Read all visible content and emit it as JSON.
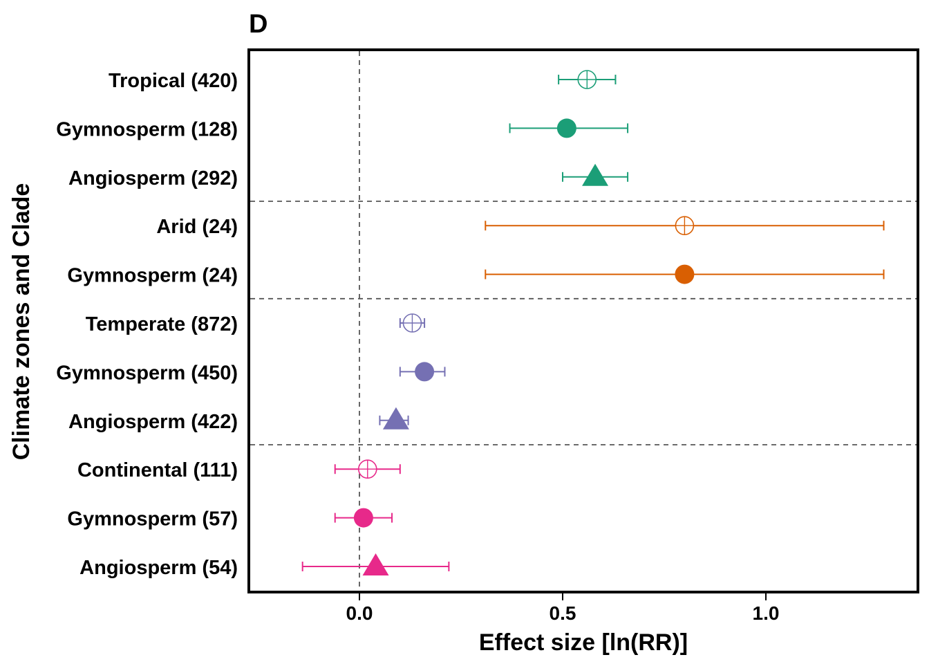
{
  "panel_label": "D",
  "chart_data": {
    "type": "scatter",
    "subtype": "forest-plot",
    "title": "",
    "xlabel": "Effect size [ln(RR)]",
    "ylabel": "Climate zones and Clade",
    "xlim": [
      -0.27,
      1.38
    ],
    "x_ticks": [
      0.0,
      0.5,
      1.0
    ],
    "x_tick_labels": [
      "0.0",
      "0.5",
      "1.0"
    ],
    "reference_line_x": 0,
    "grid": false,
    "legend": "none",
    "groups": [
      {
        "zone": "Tropical",
        "color": "#1b9e77",
        "rows": [
          {
            "label": "Tropical (420)",
            "marker": "open-circle-cross",
            "estimate": 0.56,
            "ci": [
              0.49,
              0.63
            ]
          },
          {
            "label": "Gymnosperm (128)",
            "marker": "filled-circle",
            "estimate": 0.51,
            "ci": [
              0.37,
              0.66
            ]
          },
          {
            "label": "Angiosperm (292)",
            "marker": "filled-triangle",
            "estimate": 0.58,
            "ci": [
              0.5,
              0.66
            ]
          }
        ]
      },
      {
        "zone": "Arid",
        "color": "#d95f02",
        "rows": [
          {
            "label": "Arid (24)",
            "marker": "open-circle-cross",
            "estimate": 0.8,
            "ci": [
              0.31,
              1.29
            ]
          },
          {
            "label": "Gymnosperm (24)",
            "marker": "filled-circle",
            "estimate": 0.8,
            "ci": [
              0.31,
              1.29
            ]
          }
        ]
      },
      {
        "zone": "Temperate",
        "color": "#7570b3",
        "rows": [
          {
            "label": "Temperate (872)",
            "marker": "open-circle-cross",
            "estimate": 0.13,
            "ci": [
              0.1,
              0.16
            ]
          },
          {
            "label": "Gymnosperm (450)",
            "marker": "filled-circle",
            "estimate": 0.16,
            "ci": [
              0.1,
              0.21
            ]
          },
          {
            "label": "Angiosperm (422)",
            "marker": "filled-triangle",
            "estimate": 0.09,
            "ci": [
              0.05,
              0.12
            ]
          }
        ]
      },
      {
        "zone": "Continental",
        "color": "#e7298a",
        "rows": [
          {
            "label": "Continental (111)",
            "marker": "open-circle-cross",
            "estimate": 0.02,
            "ci": [
              -0.06,
              0.1
            ]
          },
          {
            "label": "Gymnosperm (57)",
            "marker": "filled-circle",
            "estimate": 0.01,
            "ci": [
              -0.06,
              0.08
            ]
          },
          {
            "label": "Angiosperm (54)",
            "marker": "filled-triangle",
            "estimate": 0.04,
            "ci": [
              -0.14,
              0.22
            ]
          }
        ]
      }
    ]
  }
}
